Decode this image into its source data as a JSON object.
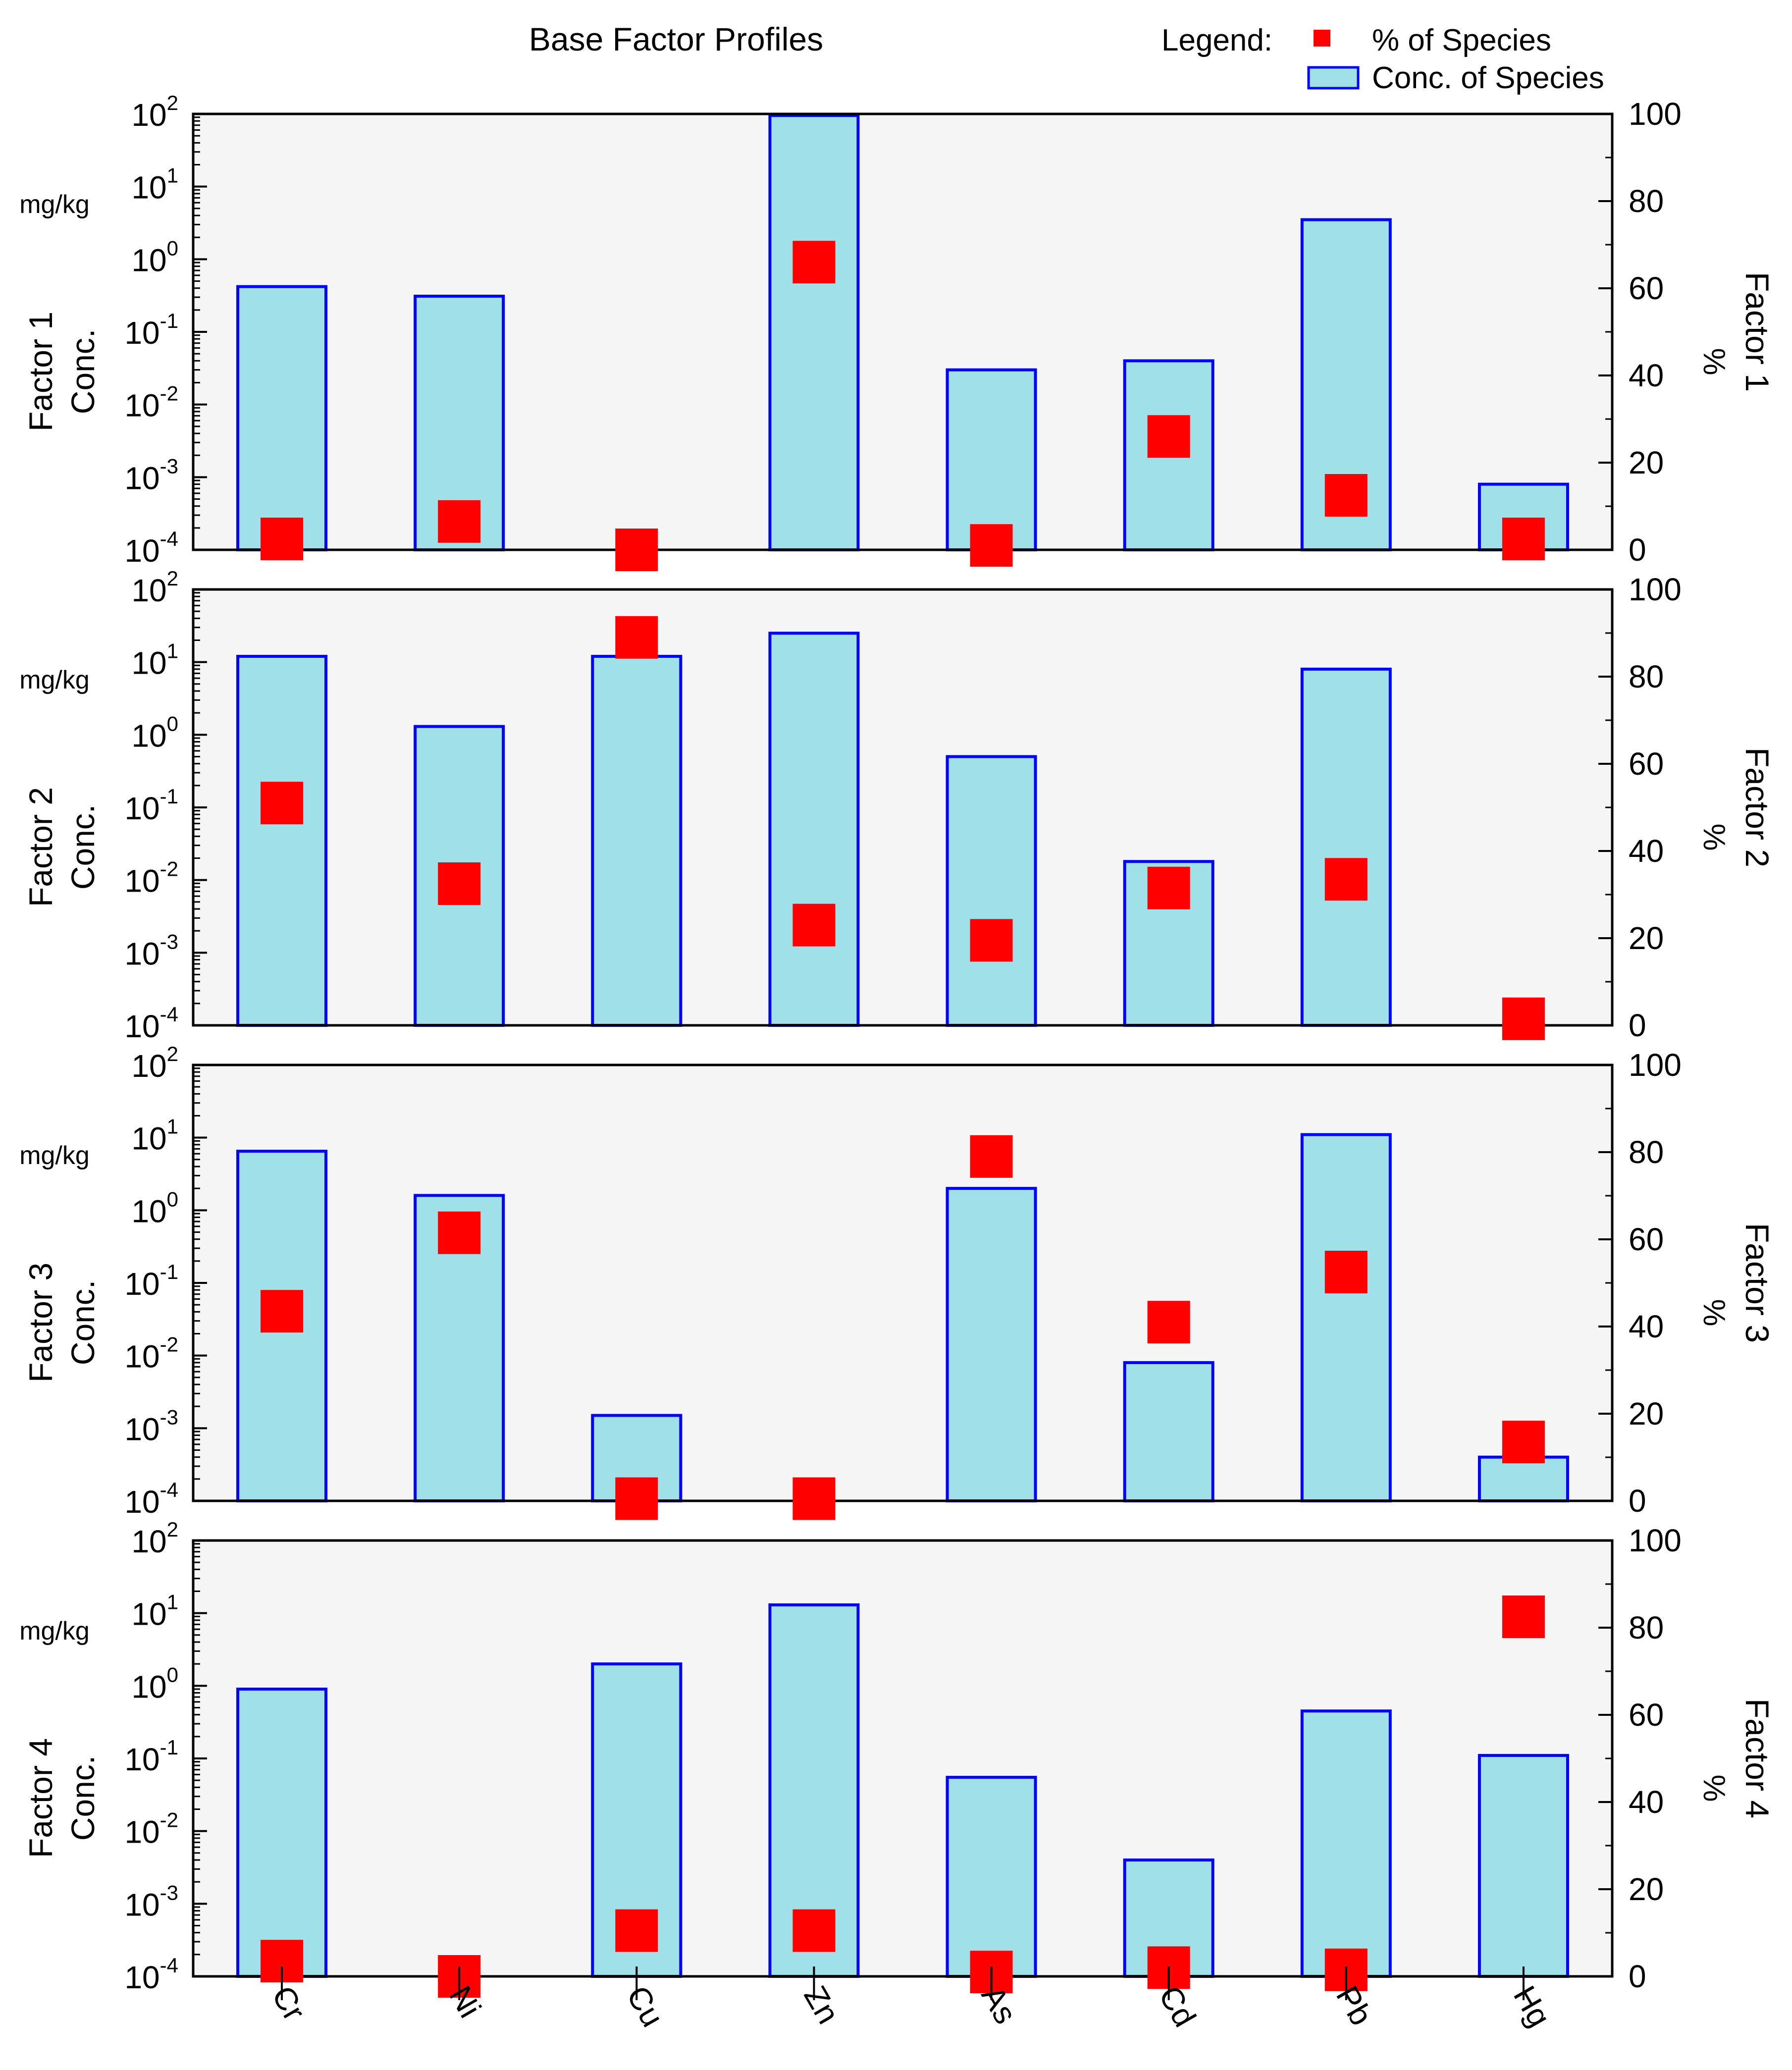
{
  "chart_data": {
    "type": "bar",
    "title": "Base Factor Profiles",
    "legend": {
      "title": "Legend:",
      "placement": "top-right",
      "entries": [
        {
          "label": "% of Species",
          "marker": "square",
          "color": "#ff0000"
        },
        {
          "label": "Conc. of Species",
          "marker": "bar",
          "color": "#a0e0e8"
        }
      ]
    },
    "categories": [
      "Cr",
      "Ni",
      "Cu",
      "Zn",
      "As",
      "Cd",
      "Pb",
      "Hg"
    ],
    "left_axis": {
      "scale": "log",
      "unit": "mg/kg",
      "range": [
        0.0001,
        100
      ],
      "ticks": [
        {
          "base": "10",
          "exp": "-4"
        },
        {
          "base": "10",
          "exp": "-3"
        },
        {
          "base": "10",
          "exp": "-2"
        },
        {
          "base": "10",
          "exp": "-1"
        },
        {
          "base": "10",
          "exp": "0"
        },
        {
          "base": "10",
          "exp": "1"
        },
        {
          "base": "10",
          "exp": "2"
        }
      ]
    },
    "right_axis": {
      "scale": "linear",
      "unit": "%",
      "range": [
        0,
        100
      ],
      "ticks": [
        "0",
        "20",
        "40",
        "60",
        "80",
        "100"
      ]
    },
    "grid": false,
    "colors": {
      "bar_fill": "#a0e0e8",
      "bar_stroke": "#0000ff",
      "marker": "#ff0000",
      "plot_bg": "#f5f5f5",
      "frame": "#000000"
    },
    "panels": [
      {
        "factor_label": "Factor 1",
        "conc_label": "Conc.",
        "pct_label": "%",
        "conc_values": [
          0.42,
          0.31,
          null,
          95,
          0.03,
          0.04,
          3.5,
          0.0008
        ],
        "pct_values": [
          2.5,
          6.5,
          0.0,
          66,
          1.0,
          26,
          12.5,
          2.5
        ]
      },
      {
        "factor_label": "Factor 2",
        "conc_label": "Conc.",
        "pct_label": "%",
        "conc_values": [
          12,
          1.3,
          12,
          25,
          0.5,
          0.018,
          8,
          null
        ],
        "pct_values": [
          51,
          32.5,
          89,
          23,
          19.5,
          31.5,
          33.5,
          1.5
        ]
      },
      {
        "factor_label": "Factor 3",
        "conc_label": "Conc.",
        "pct_label": "%",
        "conc_values": [
          6.5,
          1.6,
          0.0015,
          null,
          2.0,
          0.008,
          11,
          0.0004
        ],
        "pct_values": [
          43.5,
          61.5,
          0.5,
          0.5,
          79,
          41,
          52.5,
          13.5
        ]
      },
      {
        "factor_label": "Factor 4",
        "conc_label": "Conc.",
        "pct_label": "%",
        "conc_values": [
          0.9,
          null,
          2.0,
          13,
          0.055,
          0.004,
          0.45,
          0.11
        ],
        "pct_values": [
          3.5,
          0.0,
          10.5,
          10.5,
          1.0,
          2.0,
          1.5,
          82.5
        ]
      }
    ]
  }
}
